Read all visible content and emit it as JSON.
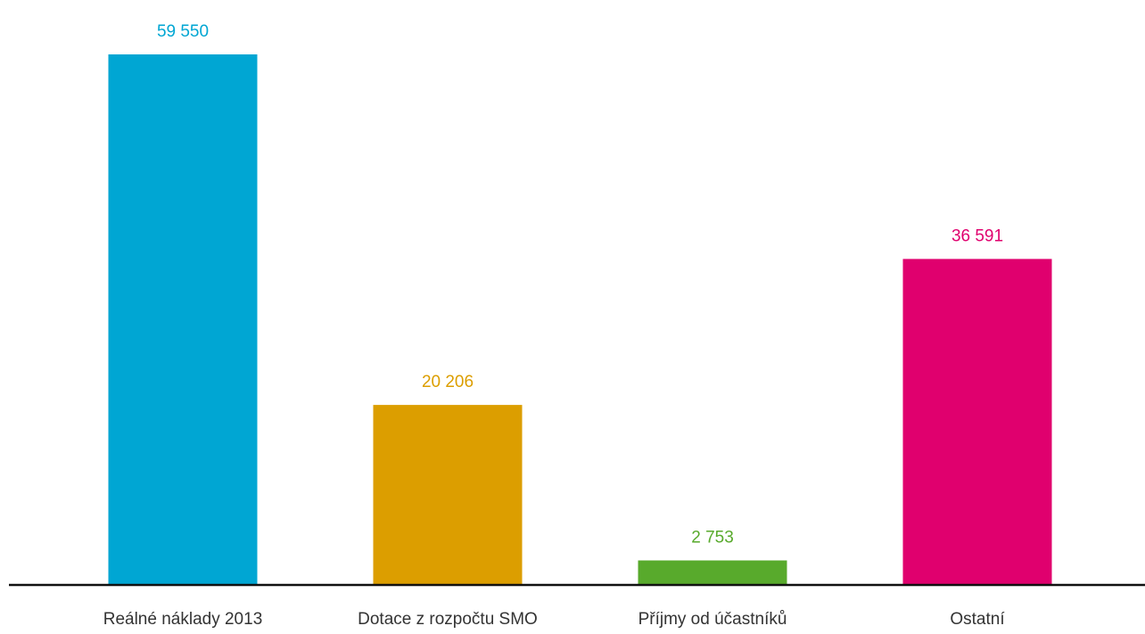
{
  "chart_data": {
    "type": "bar",
    "title": "",
    "xlabel": "",
    "ylabel": "",
    "categories": [
      "Reálné náklady 2013",
      "Dotace z rozpočtu SMO",
      "Příjmy od účastníků",
      "Ostatní"
    ],
    "values": [
      59550,
      20206,
      2753,
      36591
    ],
    "value_labels": [
      "59 550",
      "20 206",
      "2 753",
      "36 591"
    ],
    "colors": [
      "#00a6d3",
      "#dc9e00",
      "#58aa2c",
      "#e0006e"
    ],
    "ylim": [
      0,
      59550
    ],
    "grid": false,
    "legend": "none"
  }
}
